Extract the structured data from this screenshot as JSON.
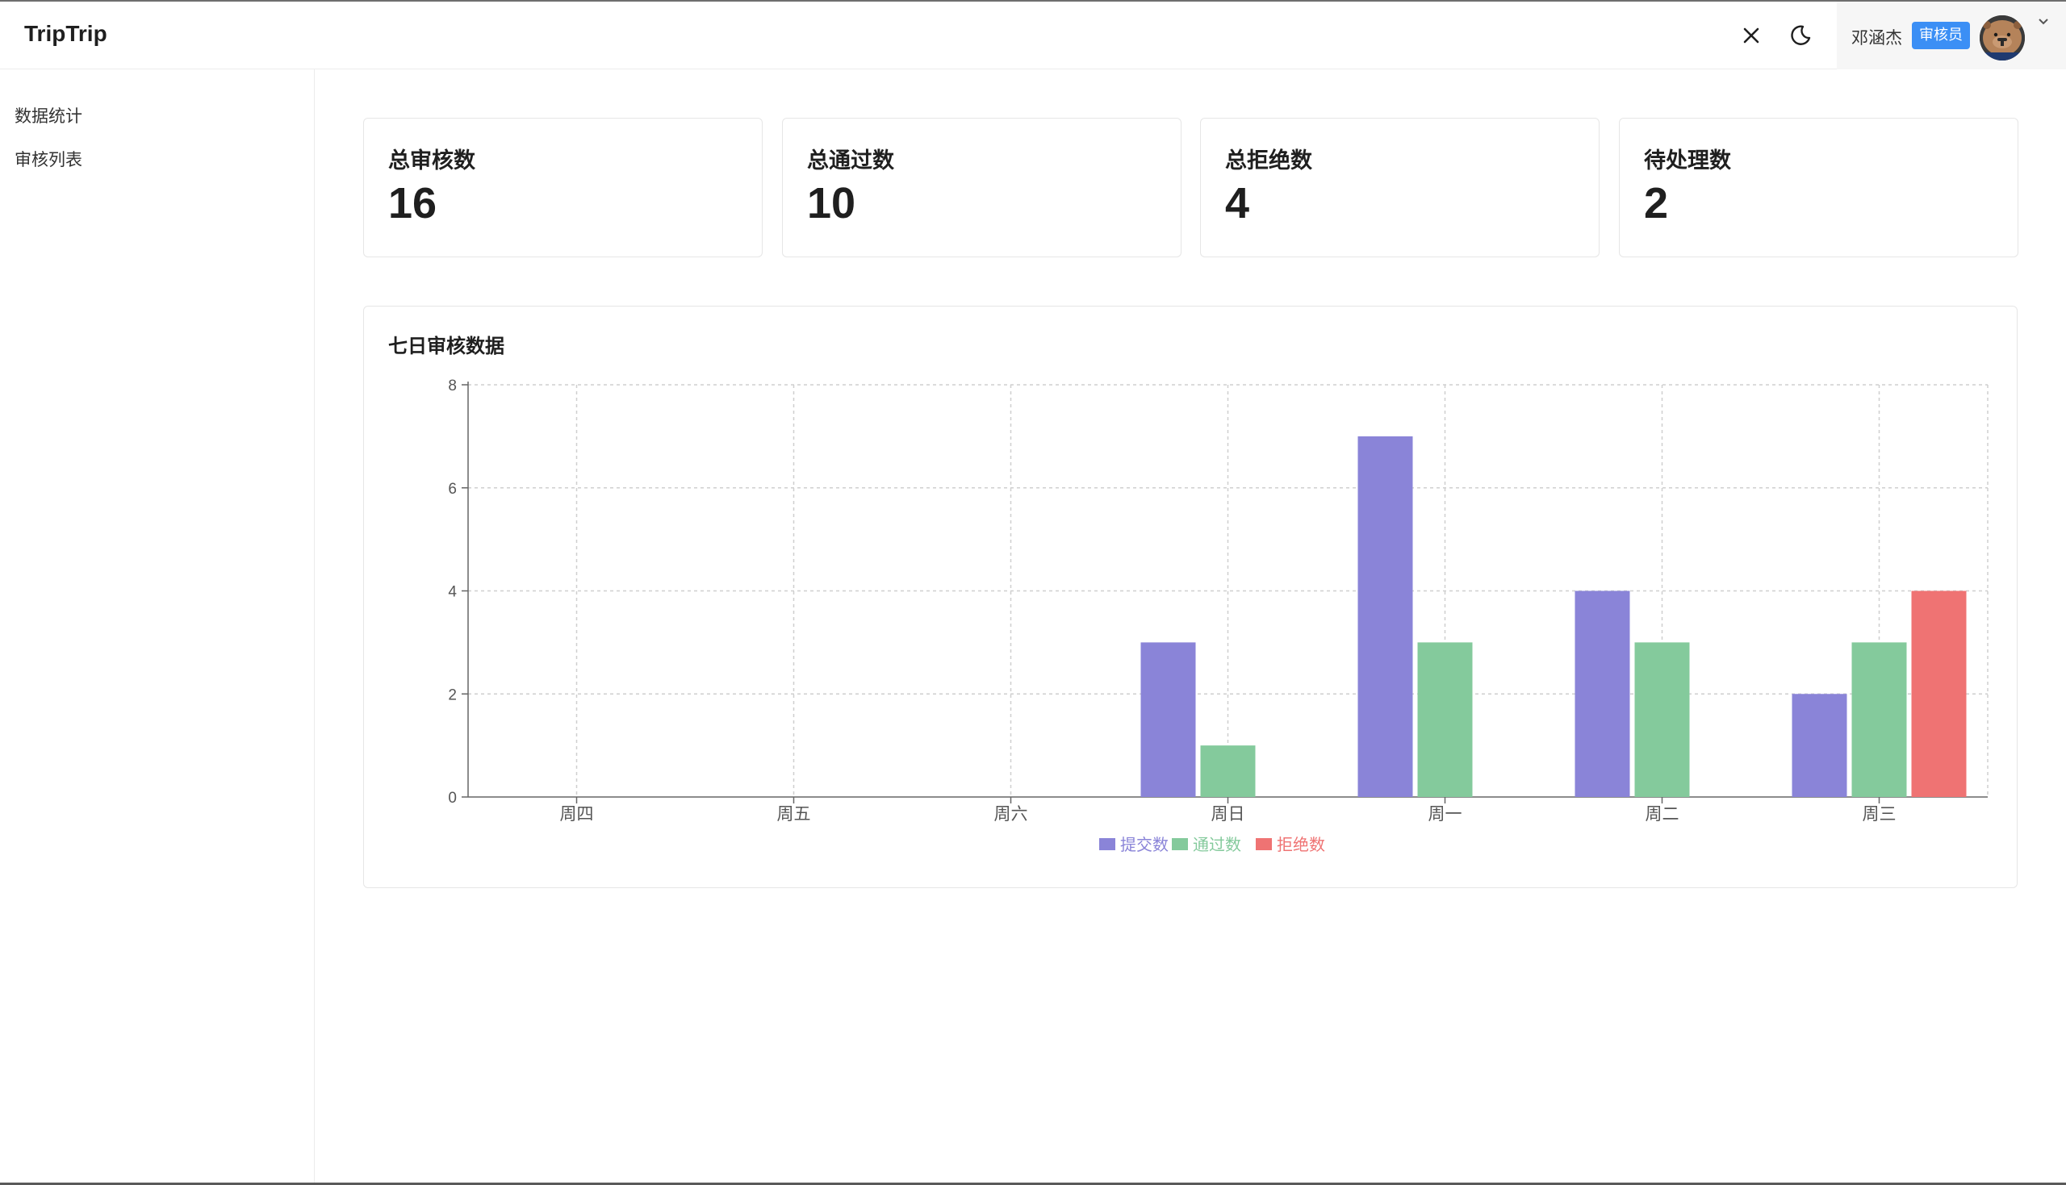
{
  "app": {
    "brand": "TripTrip"
  },
  "header": {
    "user_name": "邓涵杰",
    "role_badge": "审核员",
    "icons": [
      "close-icon",
      "moon-icon",
      "avatar",
      "chevron-down-icon"
    ]
  },
  "sidebar": {
    "items": [
      {
        "label": "数据统计"
      },
      {
        "label": "审核列表"
      }
    ]
  },
  "stats": [
    {
      "label": "总审核数",
      "value": "16"
    },
    {
      "label": "总通过数",
      "value": "10"
    },
    {
      "label": "总拒绝数",
      "value": "4"
    },
    {
      "label": "待处理数",
      "value": "2"
    }
  ],
  "chart_card": {
    "title": "七日审核数据"
  },
  "chart_data": {
    "type": "bar",
    "title": "七日审核数据",
    "categories": [
      "周四",
      "周五",
      "周六",
      "周日",
      "周一",
      "周二",
      "周三"
    ],
    "series": [
      {
        "name": "提交数",
        "color": "#8a84d8",
        "values": [
          0,
          0,
          0,
          3,
          7,
          4,
          2
        ]
      },
      {
        "name": "通过数",
        "color": "#84ca9c",
        "values": [
          0,
          0,
          0,
          1,
          3,
          3,
          3
        ]
      },
      {
        "name": "拒绝数",
        "color": "#ef7373",
        "values": [
          0,
          0,
          0,
          0,
          0,
          0,
          4
        ]
      }
    ],
    "ylim": [
      0,
      8
    ],
    "yticks": [
      0,
      2,
      4,
      6,
      8
    ],
    "grid": true,
    "legend_position": "bottom"
  }
}
